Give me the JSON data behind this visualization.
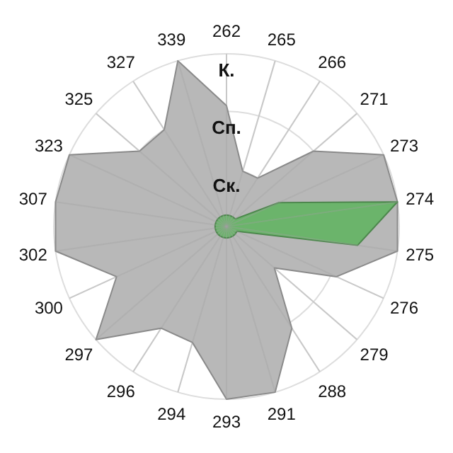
{
  "chart_data": {
    "type": "radar",
    "categories": [
      "262",
      "265",
      "266",
      "271",
      "273",
      "274",
      "275",
      "276",
      "279",
      "288",
      "291",
      "293",
      "294",
      "296",
      "297",
      "300",
      "302",
      "307",
      "323",
      "325",
      "327",
      "339"
    ],
    "series": [
      {
        "color": "#b8b8b8",
        "values": [
          2.1,
          1.0,
          1.0,
          2.0,
          3.0,
          3.0,
          3.0,
          2.1,
          1.1,
          2.1,
          3.0,
          3.0,
          2.1,
          2.1,
          3.0,
          2.1,
          3.0,
          3.0,
          3.0,
          2.0,
          2.0,
          3.0
        ]
      },
      {
        "color": "#66b366",
        "values": [
          0.2,
          0.2,
          0.2,
          0.2,
          1.0,
          3.0,
          2.3,
          0.2,
          0.2,
          0.2,
          0.2,
          0.2,
          0.2,
          0.2,
          0.2,
          0.2,
          0.2,
          0.2,
          0.2,
          0.2,
          0.2,
          0.2
        ]
      }
    ],
    "ylim": [
      0,
      3
    ],
    "yticks": [
      {
        "value": 1,
        "label": "Ск."
      },
      {
        "value": 2,
        "label": "Сп."
      },
      {
        "value": 3,
        "label": "К."
      }
    ],
    "grid": true
  }
}
